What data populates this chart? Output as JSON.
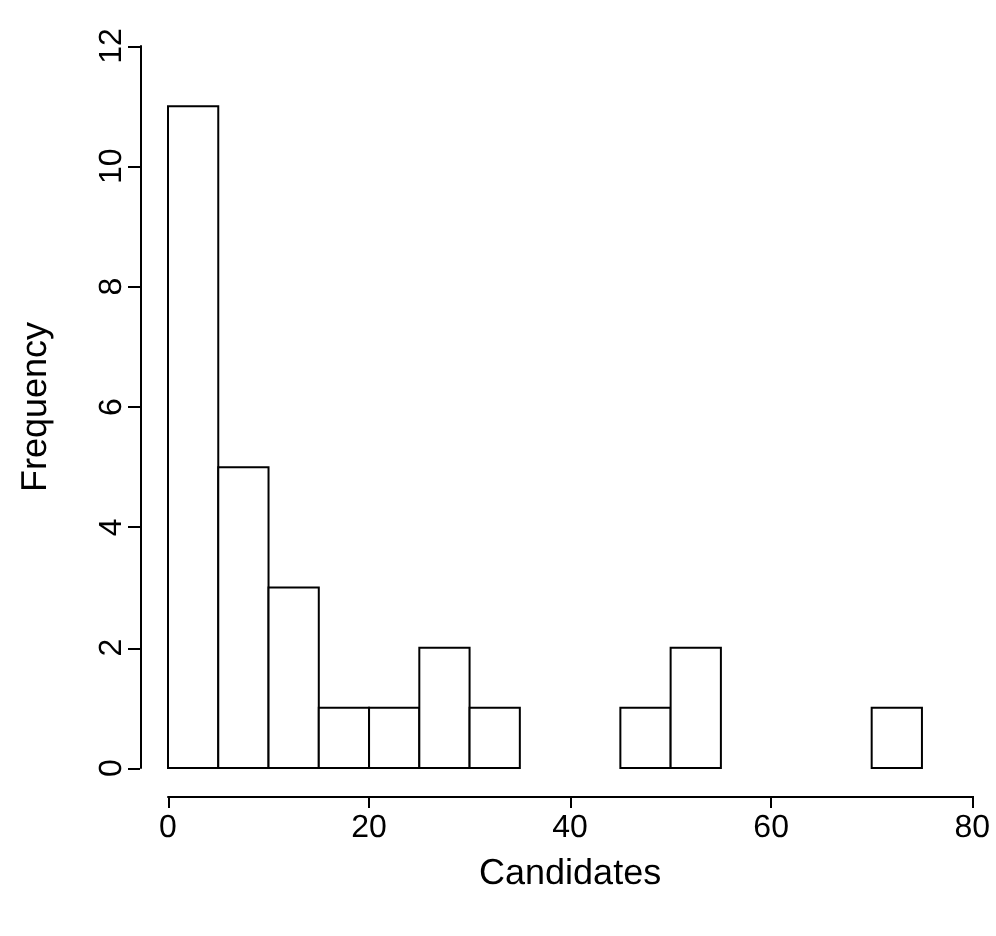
{
  "chart_data": {
    "type": "histogram",
    "xlabel": "Candidates",
    "ylabel": "Frequency",
    "bins": [
      0,
      5,
      10,
      15,
      20,
      25,
      30,
      35,
      40,
      45,
      50,
      55,
      60,
      65,
      70,
      75
    ],
    "values": [
      11,
      5,
      3,
      1,
      1,
      2,
      1,
      0,
      0,
      1,
      2,
      0,
      0,
      0,
      1
    ],
    "color": "#ffffff",
    "xlim": [
      0,
      80
    ],
    "xticks": [
      0,
      20,
      40,
      60,
      80
    ],
    "ylim": [
      0,
      12
    ],
    "yticks": [
      0,
      2,
      4,
      6,
      8,
      10,
      12
    ],
    "tick_labels": true
  }
}
